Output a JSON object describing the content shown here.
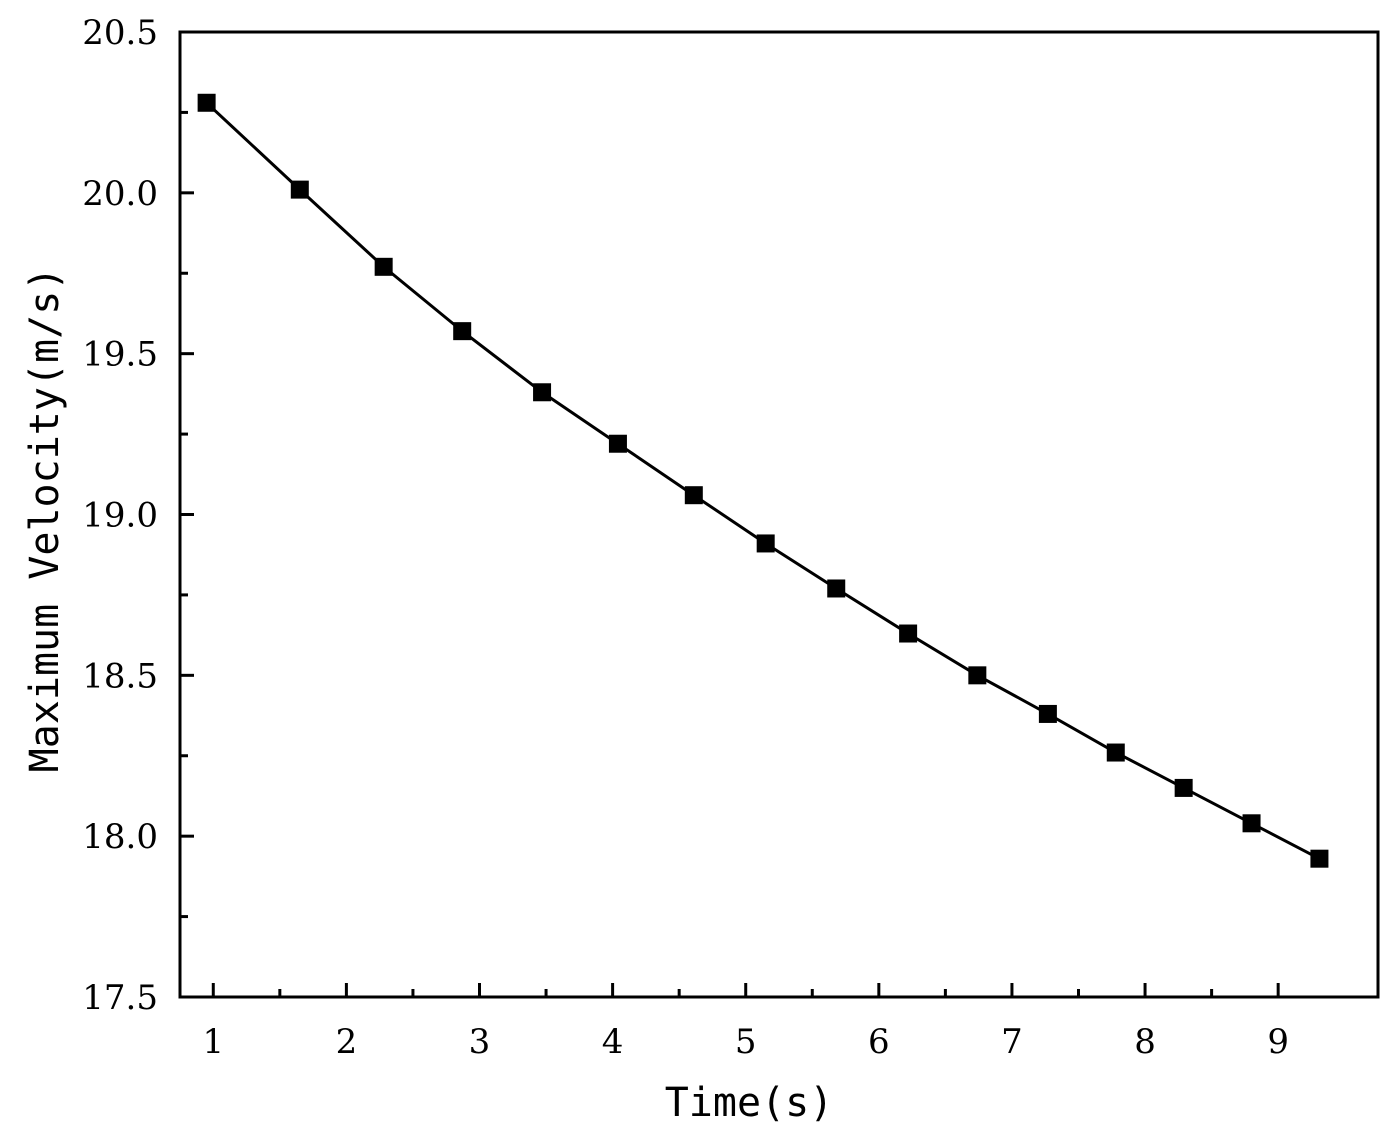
{
  "chart_data": {
    "type": "line",
    "title": "",
    "xlabel": "Time(s)",
    "ylabel": "Maximum Velocity(m/s)",
    "xlim": [
      0.75,
      9.75
    ],
    "ylim": [
      17.5,
      20.5
    ],
    "x_ticks": [
      "1",
      "2",
      "3",
      "4",
      "5",
      "6",
      "7",
      "8",
      "9"
    ],
    "y_ticks": [
      "17.5",
      "18.0",
      "18.5",
      "19.0",
      "19.5",
      "20.0",
      "20.5"
    ],
    "grid": false,
    "legend": "none",
    "marker": "square",
    "color": "#000000",
    "series": [
      {
        "x": [
          0.95,
          1.65,
          2.28,
          2.87,
          3.47,
          4.04,
          4.61,
          5.15,
          5.68,
          6.22,
          6.74,
          7.27,
          7.78,
          8.29,
          8.8,
          9.31
        ],
        "y": [
          20.28,
          20.01,
          19.77,
          19.57,
          19.38,
          19.22,
          19.06,
          18.91,
          18.77,
          18.63,
          18.5,
          18.38,
          18.26,
          18.15,
          18.04,
          17.93
        ]
      }
    ]
  }
}
